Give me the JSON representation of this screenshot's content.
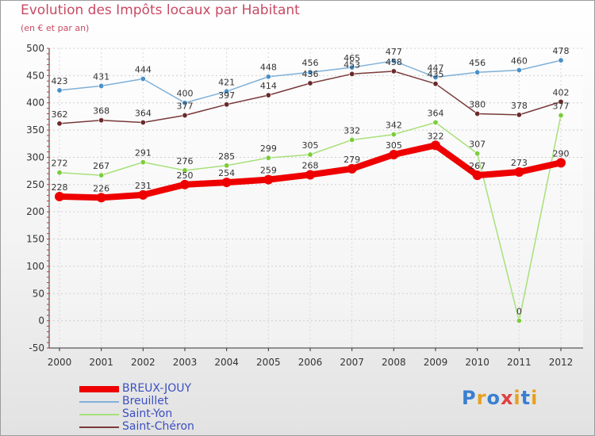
{
  "chart_data": {
    "type": "line",
    "title": "Evolution des Impôts locaux par Habitant",
    "subtitle": "(en € et par an)",
    "categories": [
      "2000",
      "2001",
      "2002",
      "2003",
      "2004",
      "2005",
      "2006",
      "2007",
      "2008",
      "2009",
      "2010",
      "2011",
      "2012"
    ],
    "ylim": [
      -50,
      500
    ],
    "yticks": [
      -50,
      0,
      50,
      100,
      150,
      200,
      250,
      300,
      350,
      400,
      450,
      500
    ],
    "grid": true,
    "legend_position": "bottom-left",
    "series": [
      {
        "name": "Breuillet",
        "color": "#7fb0d8",
        "marker": "#4a90c8",
        "values": [
          423,
          431,
          444,
          400,
          421,
          448,
          456,
          465,
          477,
          447,
          456,
          460,
          478
        ],
        "labels": [
          "423",
          "431",
          "444",
          "400",
          "421",
          "448",
          "456",
          "465",
          "477",
          "447",
          "456",
          "460",
          "478"
        ]
      },
      {
        "name": "Saint-Chéron",
        "color": "#7a3a3a",
        "marker": "#6a2a2a",
        "values": [
          362,
          368,
          364,
          377,
          397,
          414,
          436,
          453,
          458,
          435,
          380,
          378,
          402
        ],
        "labels": [
          "362",
          "368",
          "364",
          "377",
          "397",
          "414",
          "436",
          "453",
          "458",
          "435",
          "380",
          "378",
          "402"
        ]
      },
      {
        "name": "Saint-Yon",
        "color": "#a8e07a",
        "marker": "#7ccc3c",
        "values": [
          272,
          267,
          291,
          276,
          285,
          299,
          305,
          332,
          342,
          364,
          307,
          0,
          377
        ],
        "labels": [
          "272",
          "267",
          "291",
          "276",
          "285",
          "299",
          "305",
          "332",
          "342",
          "364",
          "307",
          "0",
          "377"
        ]
      },
      {
        "name": "BREUX-JOUY",
        "color": "#ee0000",
        "marker": "#ee0000",
        "values": [
          228,
          226,
          231,
          250,
          254,
          259,
          268,
          279,
          305,
          322,
          267,
          273,
          290
        ],
        "labels": [
          "228",
          "226",
          "231",
          "250",
          "254",
          "259",
          "268",
          "279",
          "305",
          "322",
          "267",
          "273",
          "290"
        ]
      }
    ]
  },
  "legend": [
    {
      "label": "BREUX-JOUY",
      "color": "#ee0000",
      "width": 8
    },
    {
      "label": "Breuillet",
      "color": "#7fb0d8",
      "width": 2
    },
    {
      "label": "Saint-Yon",
      "color": "#a8e07a",
      "width": 2
    },
    {
      "label": "Saint-Chéron",
      "color": "#7a3a3a",
      "width": 2
    }
  ],
  "logo": [
    "P",
    "r",
    "o",
    "x",
    "i",
    "t",
    "i"
  ],
  "logo_colors": [
    "#3a7fd0",
    "#e8a020",
    "#3a7fd0",
    "#e04040",
    "#e8a020",
    "#3a7fd0",
    "#e8a020"
  ]
}
